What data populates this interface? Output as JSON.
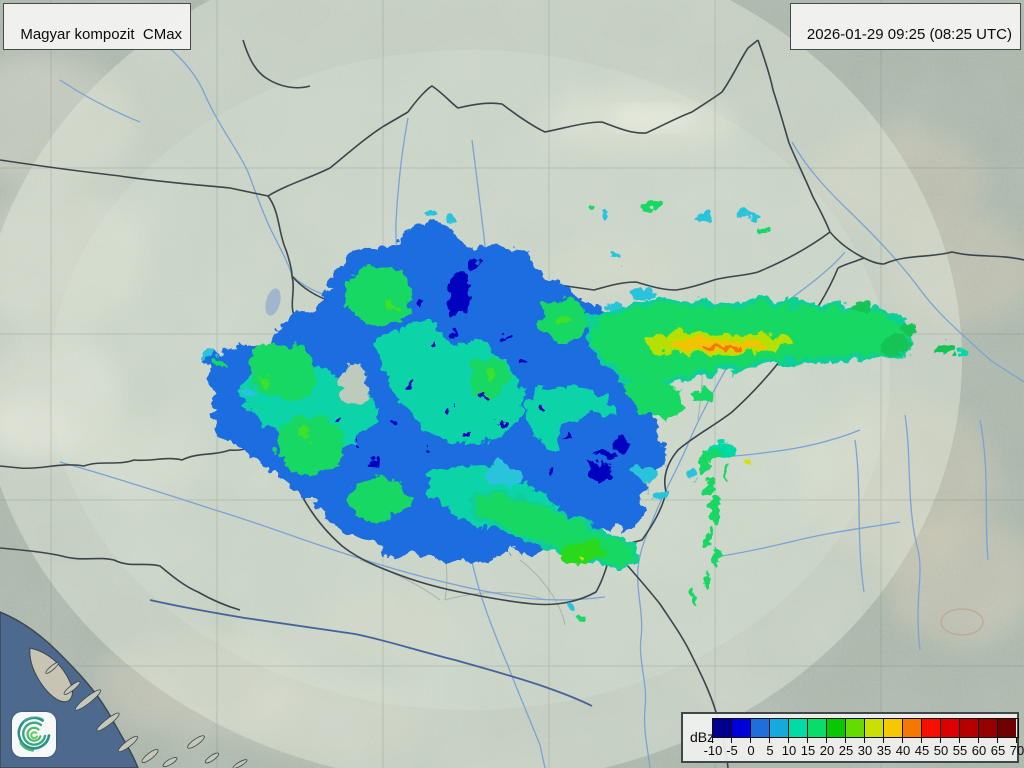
{
  "header": {
    "product_label": "Magyar kompozit  CMax",
    "timestamp_label": "2026-01-29 09:25 (08:25 UTC)"
  },
  "legend": {
    "unit_label": "dBz",
    "tick_labels": [
      "-10",
      "-5",
      "0",
      "5",
      "10",
      "15",
      "20",
      "25",
      "30",
      "35",
      "40",
      "45",
      "50",
      "55",
      "60",
      "65",
      "70"
    ],
    "cell_colors": [
      "#00008f",
      "#0000dc",
      "#1e6edc",
      "#14aadc",
      "#00dca5",
      "#0adc69",
      "#0ac800",
      "#64dc00",
      "#c8e100",
      "#f5c800",
      "#f57800",
      "#f71000",
      "#dc0000",
      "#b40000",
      "#960000",
      "#6e0000"
    ]
  },
  "logo": {
    "name": "weather-service-spiral-logo"
  },
  "map": {
    "colors": {
      "land_base": "#a9b5a9",
      "range_area": "#dfe8da",
      "sea": "#4d6a8e",
      "country_border": "#3c444c",
      "river": "#7aa3d6",
      "echo_light_blue": "#2cc3dc",
      "echo_teal": "#06d9a6",
      "echo_green": "#17d863",
      "echo_yellow": "#f2c300",
      "echo_blue_fringe": "#1f6ee0",
      "echo_navy": "#0000bf"
    }
  }
}
